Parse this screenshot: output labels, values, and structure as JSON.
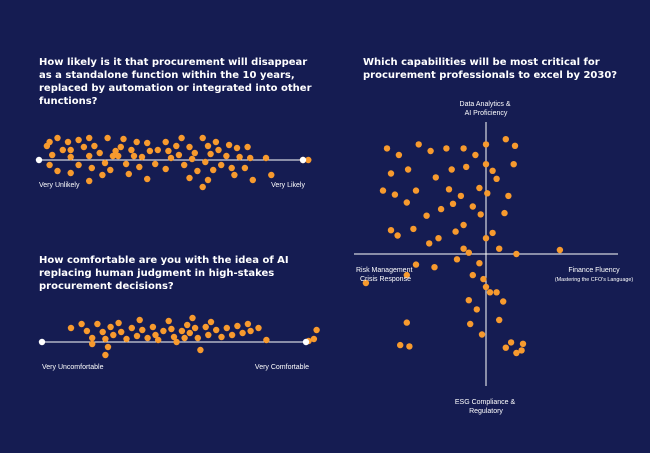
{
  "colors": {
    "background": "#151c52",
    "dot": "#f79a2e",
    "line": "#ffffff"
  },
  "questions": {
    "q1": "How likely is it that procurement will disappear\nas a standalone function within the 10 years,\nreplaced by automation or integrated into other\nfunctions?",
    "q2": "How comfortable are you with the idea of AI\nreplacing human judgment in high-stakes\nprocurement decisions?",
    "q3": "Which capabilities will be most critical for\nprocurement professionals to excel by 2030?"
  },
  "chart_data": [
    {
      "type": "scatter",
      "title": "How likely is it that procurement will disappear as a standalone function within the 10 years, replaced by automation or integrated into other functions?",
      "xlabel_left": "Very Unlikely",
      "xlabel_right": "Very Likely",
      "xlim": [
        0,
        100
      ],
      "ylim": [
        -1,
        1
      ],
      "points": [
        [
          3,
          0.56
        ],
        [
          4,
          0.72
        ],
        [
          7,
          0.88
        ],
        [
          9,
          0.4
        ],
        [
          5,
          0.2
        ],
        [
          4,
          -0.2
        ],
        [
          7,
          -0.44
        ],
        [
          11,
          0.72
        ],
        [
          12,
          0.4
        ],
        [
          12,
          0.12
        ],
        [
          15,
          0.8
        ],
        [
          17,
          0.52
        ],
        [
          15,
          -0.2
        ],
        [
          12,
          -0.52
        ],
        [
          19,
          0.88
        ],
        [
          21,
          0.56
        ],
        [
          19,
          0.16
        ],
        [
          20,
          -0.32
        ],
        [
          19,
          -0.84
        ],
        [
          26,
          0.88
        ],
        [
          23,
          0.28
        ],
        [
          25,
          -0.12
        ],
        [
          24,
          -0.6
        ],
        [
          29,
          0.36
        ],
        [
          28,
          0.16
        ],
        [
          27,
          -0.4
        ],
        [
          32,
          0.84
        ],
        [
          31,
          0.52
        ],
        [
          30,
          0.16
        ],
        [
          33,
          -0.16
        ],
        [
          35,
          0.4
        ],
        [
          37,
          0.72
        ],
        [
          36,
          0.16
        ],
        [
          34,
          -0.56
        ],
        [
          41,
          0.68
        ],
        [
          42,
          0.36
        ],
        [
          39,
          0.12
        ],
        [
          38,
          -0.28
        ],
        [
          41,
          -0.76
        ],
        [
          45,
          0.4
        ],
        [
          44,
          -0.16
        ],
        [
          48,
          0.72
        ],
        [
          49,
          0.36
        ],
        [
          50,
          0.08
        ],
        [
          48,
          -0.36
        ],
        [
          52,
          0.56
        ],
        [
          54,
          0.88
        ],
        [
          53,
          0.2
        ],
        [
          55,
          -0.2
        ],
        [
          57,
          0.52
        ],
        [
          59,
          0.28
        ],
        [
          58,
          0.04
        ],
        [
          60,
          -0.44
        ],
        [
          57,
          -0.72
        ],
        [
          62,
          0.88
        ],
        [
          64,
          0.56
        ],
        [
          65,
          0.24
        ],
        [
          63,
          -0.08
        ],
        [
          66,
          -0.4
        ],
        [
          67,
          0.72
        ],
        [
          68,
          0.4
        ],
        [
          69,
          -0.2
        ],
        [
          64,
          -0.8
        ],
        [
          72,
          0.6
        ],
        [
          71,
          0.16
        ],
        [
          73,
          -0.32
        ],
        [
          75,
          0.48
        ],
        [
          76,
          0.12
        ],
        [
          74,
          -0.6
        ],
        [
          62,
          -1.08
        ],
        [
          79,
          0.52
        ],
        [
          78,
          -0.32
        ],
        [
          80,
          0.08
        ],
        [
          81,
          -0.8
        ],
        [
          86,
          0.08
        ],
        [
          88,
          -0.6
        ],
        [
          100,
          0
        ],
        [
          102,
          0
        ]
      ]
    },
    {
      "type": "scatter",
      "title": "How comfortable are you with the idea of AI replacing human judgment in high-stakes procurement decisions?",
      "xlabel_left": "Very Uncomfortable",
      "xlabel_right": "Very Comfortable",
      "xlim": [
        0,
        100
      ],
      "ylim": [
        -1,
        1
      ],
      "points": [
        [
          11,
          0.56
        ],
        [
          15,
          0.72
        ],
        [
          17,
          0.44
        ],
        [
          19,
          0.16
        ],
        [
          19,
          -0.08
        ],
        [
          21,
          0.72
        ],
        [
          23,
          0.4
        ],
        [
          24,
          0.12
        ],
        [
          25,
          -0.2
        ],
        [
          24,
          -0.52
        ],
        [
          26,
          0.6
        ],
        [
          27,
          0.28
        ],
        [
          29,
          0.76
        ],
        [
          30,
          0.4
        ],
        [
          32,
          0.12
        ],
        [
          34,
          0.56
        ],
        [
          36,
          0.24
        ],
        [
          37,
          0.88
        ],
        [
          38,
          0.48
        ],
        [
          40,
          0.16
        ],
        [
          42,
          0.6
        ],
        [
          43,
          0.28
        ],
        [
          44,
          0.08
        ],
        [
          46,
          0.44
        ],
        [
          48,
          0.84
        ],
        [
          49,
          0.52
        ],
        [
          50,
          0.2
        ],
        [
          51,
          0
        ],
        [
          53,
          0.44
        ],
        [
          54,
          0.16
        ],
        [
          55,
          0.68
        ],
        [
          56,
          0.36
        ],
        [
          57,
          0.96
        ],
        [
          58,
          0.56
        ],
        [
          59,
          0.16
        ],
        [
          60,
          -0.32
        ],
        [
          62,
          0.6
        ],
        [
          63,
          0.28
        ],
        [
          64,
          0.8
        ],
        [
          66,
          0.48
        ],
        [
          68,
          0.2
        ],
        [
          70,
          0.56
        ],
        [
          72,
          0.28
        ],
        [
          74,
          0.64
        ],
        [
          76,
          0.36
        ],
        [
          78,
          0.72
        ],
        [
          79,
          0.44
        ],
        [
          82,
          0.56
        ],
        [
          85,
          0.08
        ],
        [
          103,
          0.12
        ],
        [
          101,
          0.04
        ],
        [
          104,
          0.48
        ]
      ]
    },
    {
      "type": "scatter",
      "title": "Which capabilities will be most critical for procurement professionals to excel by 2030?",
      "axis_labels": {
        "top": [
          "Data Analytics &",
          "AI Proficiency"
        ],
        "left": [
          "Risk Management",
          "Crisis Response"
        ],
        "right": [
          "Finance Fluency"
        ],
        "right_sub": "(Mastering the CFO's Language)",
        "bottom": [
          "ESG Compliance &",
          "Regulatory"
        ]
      },
      "xlim": [
        -100,
        100
      ],
      "ylim": [
        -100,
        100
      ],
      "points": [
        [
          -75,
          80
        ],
        [
          -66,
          75
        ],
        [
          -72,
          61
        ],
        [
          -78,
          48
        ],
        [
          -69,
          45
        ],
        [
          -59,
          64
        ],
        [
          -60,
          39
        ],
        [
          -51,
          83
        ],
        [
          -53,
          48
        ],
        [
          -42,
          78
        ],
        [
          -38,
          58
        ],
        [
          -30,
          80
        ],
        [
          -26,
          64
        ],
        [
          -17,
          80
        ],
        [
          -15,
          66
        ],
        [
          -8,
          75
        ],
        [
          -28,
          49
        ],
        [
          -25,
          38
        ],
        [
          -34,
          34
        ],
        [
          -19,
          44
        ],
        [
          -5,
          50
        ],
        [
          -10,
          36
        ],
        [
          0,
          83
        ],
        [
          0,
          68
        ],
        [
          1,
          46
        ],
        [
          -4,
          30
        ],
        [
          -45,
          29
        ],
        [
          -55,
          19
        ],
        [
          -43,
          8
        ],
        [
          -36,
          12
        ],
        [
          -23,
          17
        ],
        [
          -17,
          4
        ],
        [
          -72,
          18
        ],
        [
          -67,
          14
        ],
        [
          -17,
          22
        ],
        [
          0,
          12
        ],
        [
          -5,
          -7
        ],
        [
          -13,
          1
        ],
        [
          -53,
          -8
        ],
        [
          -39,
          -10
        ],
        [
          -60,
          -16
        ],
        [
          -22,
          -4
        ],
        [
          -10,
          -16
        ],
        [
          -2,
          -19
        ],
        [
          0,
          -25
        ],
        [
          3,
          -29
        ],
        [
          8,
          57
        ],
        [
          15,
          87
        ],
        [
          14,
          31
        ],
        [
          21,
          68
        ],
        [
          5,
          63
        ],
        [
          17,
          44
        ],
        [
          22,
          82
        ],
        [
          5,
          16
        ],
        [
          8,
          -29
        ],
        [
          10,
          4
        ],
        [
          23,
          0
        ],
        [
          56,
          3
        ],
        [
          -91,
          -22
        ],
        [
          -60,
          -52
        ],
        [
          -65,
          -69
        ],
        [
          -58,
          -70
        ],
        [
          -13,
          -35
        ],
        [
          -12,
          -53
        ],
        [
          -7,
          -42
        ],
        [
          -3,
          -61
        ],
        [
          10,
          -50
        ],
        [
          13,
          -36
        ],
        [
          15,
          -71
        ],
        [
          19,
          -67
        ],
        [
          23,
          -75
        ],
        [
          27,
          -73
        ],
        [
          28,
          -68
        ]
      ]
    }
  ]
}
